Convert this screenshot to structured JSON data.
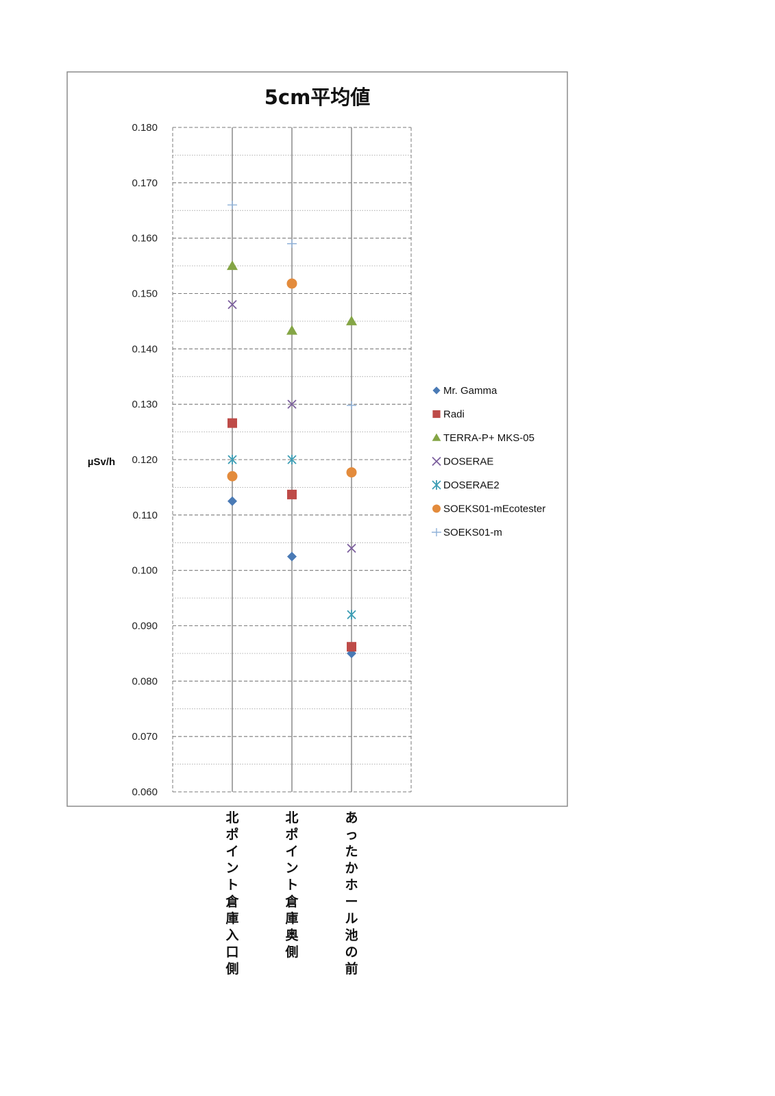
{
  "chart_data": {
    "type": "scatter",
    "title": "5cm平均値",
    "ylabel": "µSv/h",
    "xlabel": "",
    "categories": [
      "北ポイント倉庫入口側",
      "北ポイント倉庫奥側",
      "あったかホール池の前"
    ],
    "ylim": [
      0.06,
      0.18
    ],
    "yticks": [
      "0.180",
      "0.170",
      "0.160",
      "0.150",
      "0.140",
      "0.130",
      "0.120",
      "0.110",
      "0.100",
      "0.090",
      "0.080",
      "0.070",
      "0.060"
    ],
    "grid": true,
    "legend_position": "right",
    "series": [
      {
        "name": "Mr. Gamma",
        "marker": "diamond",
        "color": "#4a7ab5",
        "values": [
          0.1125,
          0.1025,
          0.085
        ]
      },
      {
        "name": "Radi",
        "marker": "square",
        "color": "#be4b48",
        "values": [
          0.1266,
          0.1137,
          0.0862
        ]
      },
      {
        "name": "TERRA-P+ MKS-05",
        "marker": "triangle",
        "color": "#84a545",
        "values": [
          0.155,
          0.1433,
          0.145
        ]
      },
      {
        "name": "DOSERAE",
        "marker": "x",
        "color": "#7c5f9e",
        "values": [
          0.148,
          0.13,
          0.104
        ]
      },
      {
        "name": "DOSERAE2",
        "marker": "asterisk",
        "color": "#3c9db4",
        "values": [
          0.12,
          0.12,
          0.092
        ]
      },
      {
        "name": "SOEKS01-mEcotester",
        "marker": "circle",
        "color": "#e38b3c",
        "values": [
          0.117,
          0.1518,
          0.1177
        ]
      },
      {
        "name": "SOEKS01-m",
        "marker": "plus",
        "color": "#8fb1d8",
        "values": [
          0.166,
          0.159,
          0.1298
        ]
      }
    ]
  }
}
